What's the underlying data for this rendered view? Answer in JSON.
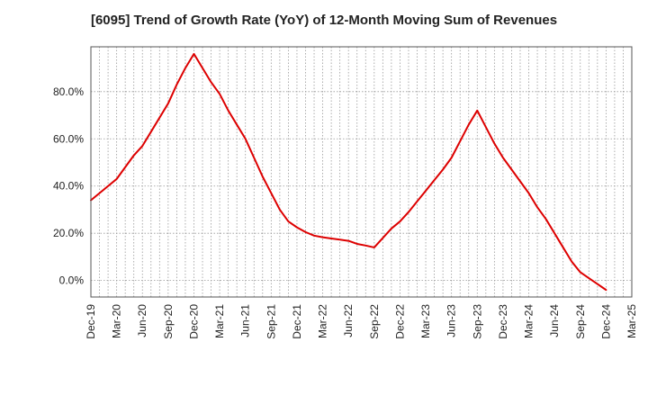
{
  "chart_data": {
    "type": "line",
    "title": "[6095]  Trend of Growth Rate (YoY) of 12-Month Moving Sum of Revenues",
    "xlabel": "",
    "ylabel": "",
    "x_tick_labels": [
      "Dec-19",
      "Mar-20",
      "Jun-20",
      "Sep-20",
      "Dec-20",
      "Mar-21",
      "Jun-21",
      "Sep-21",
      "Dec-21",
      "Mar-22",
      "Jun-22",
      "Sep-22",
      "Dec-22",
      "Mar-23",
      "Jun-23",
      "Sep-23",
      "Dec-23",
      "Mar-24",
      "Jun-24",
      "Sep-24",
      "Dec-24",
      "Mar-25"
    ],
    "y_tick_labels": [
      "0.0%",
      "20.0%",
      "40.0%",
      "60.0%",
      "80.0%"
    ],
    "y_ticks": [
      0,
      20,
      40,
      60,
      80
    ],
    "ylim": [
      -7,
      99
    ],
    "grid": true,
    "line_color": "#dd0000",
    "series": [
      {
        "x": [
          "Dec-19",
          "Jan-20",
          "Feb-20",
          "Mar-20",
          "Apr-20",
          "May-20",
          "Jun-20",
          "Jul-20",
          "Aug-20",
          "Sep-20",
          "Oct-20",
          "Nov-20",
          "Dec-20",
          "Jan-21",
          "Feb-21",
          "Mar-21",
          "Apr-21",
          "May-21",
          "Jun-21",
          "Jul-21",
          "Aug-21",
          "Sep-21",
          "Oct-21",
          "Nov-21",
          "Dec-21",
          "Jan-22",
          "Feb-22",
          "Mar-22",
          "Apr-22",
          "May-22",
          "Jun-22",
          "Jul-22",
          "Aug-22",
          "Sep-22",
          "Oct-22",
          "Nov-22",
          "Dec-22",
          "Jan-23",
          "Feb-23",
          "Mar-23",
          "Apr-23",
          "May-23",
          "Jun-23",
          "Jul-23",
          "Aug-23",
          "Sep-23",
          "Oct-23",
          "Nov-23",
          "Dec-23",
          "Jan-24",
          "Feb-24",
          "Mar-24",
          "Apr-24",
          "May-24",
          "Jun-24",
          "Jul-24",
          "Aug-24",
          "Sep-24",
          "Oct-24",
          "Nov-24",
          "Dec-24"
        ],
        "values": [
          34,
          37,
          40,
          43,
          48,
          53,
          57,
          63,
          69,
          75,
          83,
          90,
          96,
          90,
          84,
          79,
          72,
          66,
          60,
          52,
          44,
          37,
          30,
          25,
          22.5,
          20.5,
          19,
          18.3,
          17.8,
          17.3,
          16.8,
          15.5,
          14.8,
          14,
          18,
          22,
          25,
          29,
          33.5,
          38,
          42.5,
          47,
          52,
          59,
          66,
          72,
          65,
          58,
          52,
          47,
          42,
          37,
          31,
          26,
          20,
          14,
          8,
          3.5,
          1,
          -1.5,
          -4
        ]
      }
    ]
  }
}
